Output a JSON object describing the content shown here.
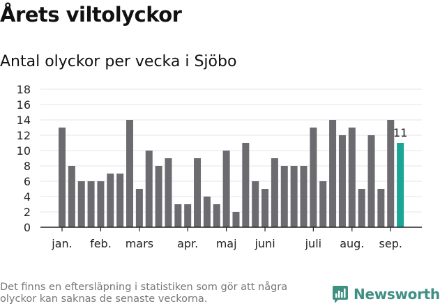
{
  "title": "Årets viltolyckor",
  "subtitle": "Antal olyckor per vecka i Sjöbo",
  "footnote": "Det finns en eftersläpning i statistiken som gör att några olyckor kan saknas de senaste veckorna.",
  "brand": "Newsworthy",
  "colors": {
    "bar": "#6b6b70",
    "highlight": "#1aa597",
    "brand": "#3f8f83",
    "grid": "#e6e6e6",
    "axis": "#222222"
  },
  "chart_data": {
    "type": "bar",
    "title": "Antal olyckor per vecka i Sjöbo",
    "xlabel": "",
    "ylabel": "",
    "ylim": [
      0,
      18
    ],
    "yticks": [
      0,
      2,
      4,
      6,
      8,
      10,
      12,
      14,
      16,
      18
    ],
    "grid": true,
    "month_labels": [
      "jan.",
      "feb.",
      "mars",
      "apr.",
      "maj",
      "juni",
      "juli",
      "aug.",
      "sep."
    ],
    "month_label_week_index": [
      0,
      4,
      8,
      13,
      17,
      21,
      26,
      30,
      34
    ],
    "values": [
      13,
      8,
      6,
      6,
      6,
      7,
      7,
      14,
      5,
      10,
      8,
      9,
      3,
      3,
      9,
      4,
      3,
      10,
      2,
      11,
      6,
      5,
      9,
      8,
      8,
      8,
      13,
      6,
      14,
      12,
      13,
      5,
      12,
      5,
      14,
      11
    ],
    "highlight_index": 35,
    "highlight_label": "11"
  }
}
